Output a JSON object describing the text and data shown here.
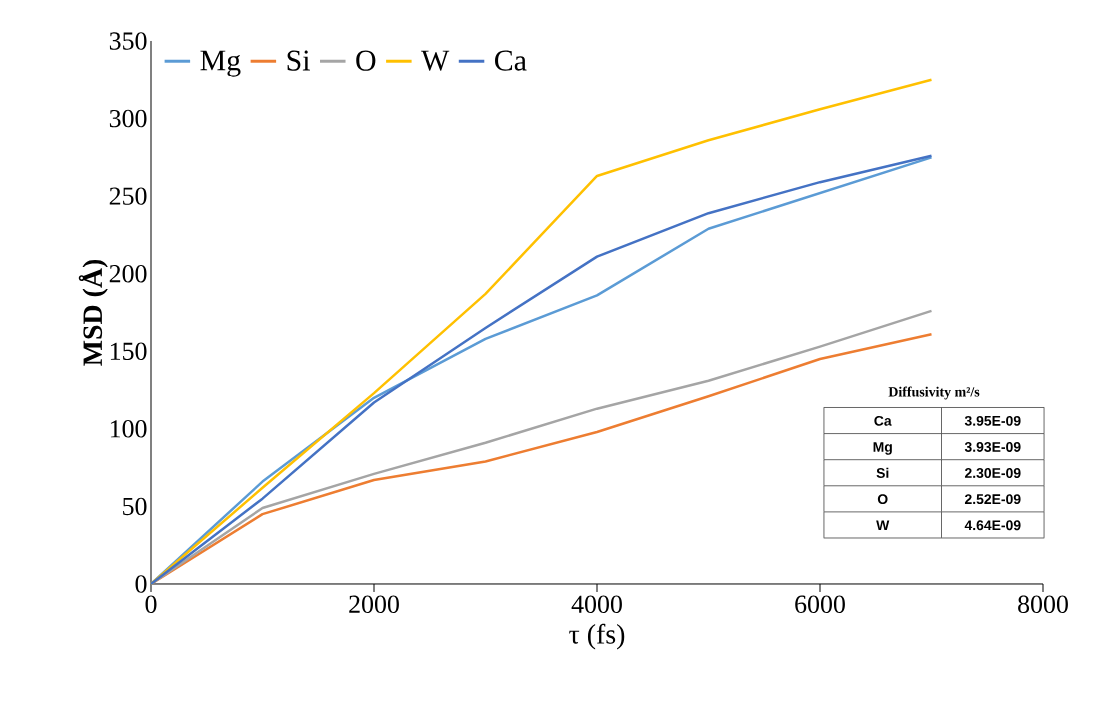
{
  "chart_data": {
    "type": "line",
    "xlabel": "τ (fs)",
    "ylabel": "MSD (Å)",
    "xlim": [
      0,
      8000
    ],
    "ylim": [
      0,
      350
    ],
    "xticks": [
      0,
      2000,
      4000,
      6000,
      8000
    ],
    "yticks": [
      0,
      50,
      100,
      150,
      200,
      250,
      300,
      350
    ],
    "legend": "top left",
    "marker": "none",
    "line_style": "solid",
    "grid": false,
    "x": [
      0,
      1000,
      2000,
      3000,
      4000,
      5000,
      6000,
      7000
    ],
    "series": [
      {
        "name": "Mg",
        "color": "#5b9bd5",
        "values": [
          0,
          66,
          120,
          158,
          186,
          229,
          252,
          275
        ]
      },
      {
        "name": "Si",
        "color": "#ed7d31",
        "values": [
          0,
          45,
          67,
          79,
          98,
          121,
          145,
          161
        ]
      },
      {
        "name": "O",
        "color": "#a5a5a5",
        "values": [
          0,
          49,
          71,
          91,
          113,
          131,
          153,
          176
        ]
      },
      {
        "name": "W",
        "color": "#ffc000",
        "values": [
          0,
          62,
          123,
          187,
          263,
          286,
          306,
          325
        ]
      },
      {
        "name": "Ca",
        "color": "#4472c4",
        "values": [
          0,
          55,
          117,
          165,
          211,
          239,
          259,
          276
        ]
      }
    ],
    "annotations": [
      "Diffusivity m²/s",
      "Ca",
      "3.95E-09",
      "Mg",
      "3.93E-09",
      "Si",
      "2.30E-09",
      "O",
      "2.52E-09",
      "W",
      "4.64E-09"
    ]
  }
}
